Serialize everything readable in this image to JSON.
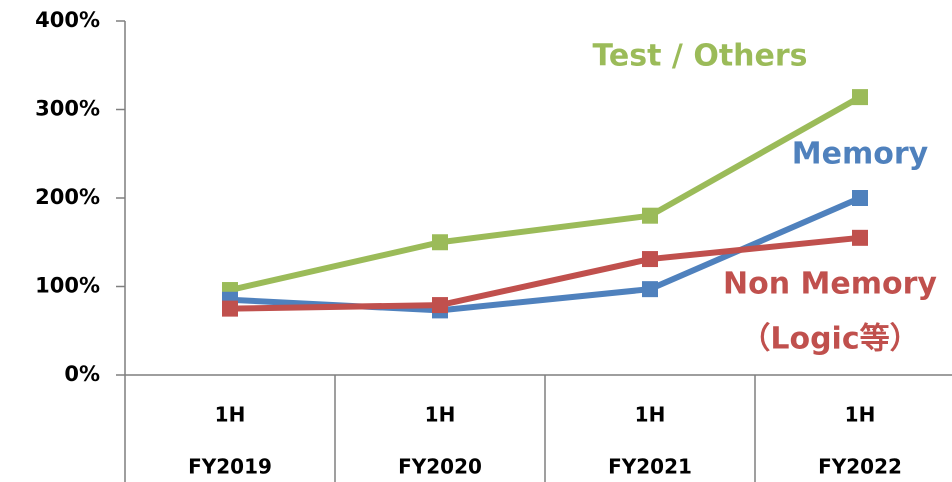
{
  "chart_data": {
    "type": "line",
    "categories": [
      [
        "1H",
        "FY2019"
      ],
      [
        "1H",
        "FY2020"
      ],
      [
        "1H",
        "FY2021"
      ],
      [
        "1H",
        "FY2022"
      ]
    ],
    "series": [
      {
        "name": [
          "Test / Others"
        ],
        "color": "#9bbb59",
        "values": [
          96,
          150,
          180,
          314
        ]
      },
      {
        "name": [
          "Memory"
        ],
        "color": "#4f81bd",
        "values": [
          85,
          73,
          97,
          200
        ]
      },
      {
        "name": [
          "Non Memory",
          "（Logic等）"
        ],
        "color": "#c0504d",
        "values": [
          75,
          79,
          131,
          155
        ]
      }
    ],
    "ylim": [
      0,
      400
    ],
    "yticks": [
      {
        "value": 0,
        "label": "0%"
      },
      {
        "value": 100,
        "label": "100%"
      },
      {
        "value": 200,
        "label": "200%"
      },
      {
        "value": 300,
        "label": "300%"
      },
      {
        "value": 400,
        "label": "400%"
      }
    ],
    "grid": false
  }
}
